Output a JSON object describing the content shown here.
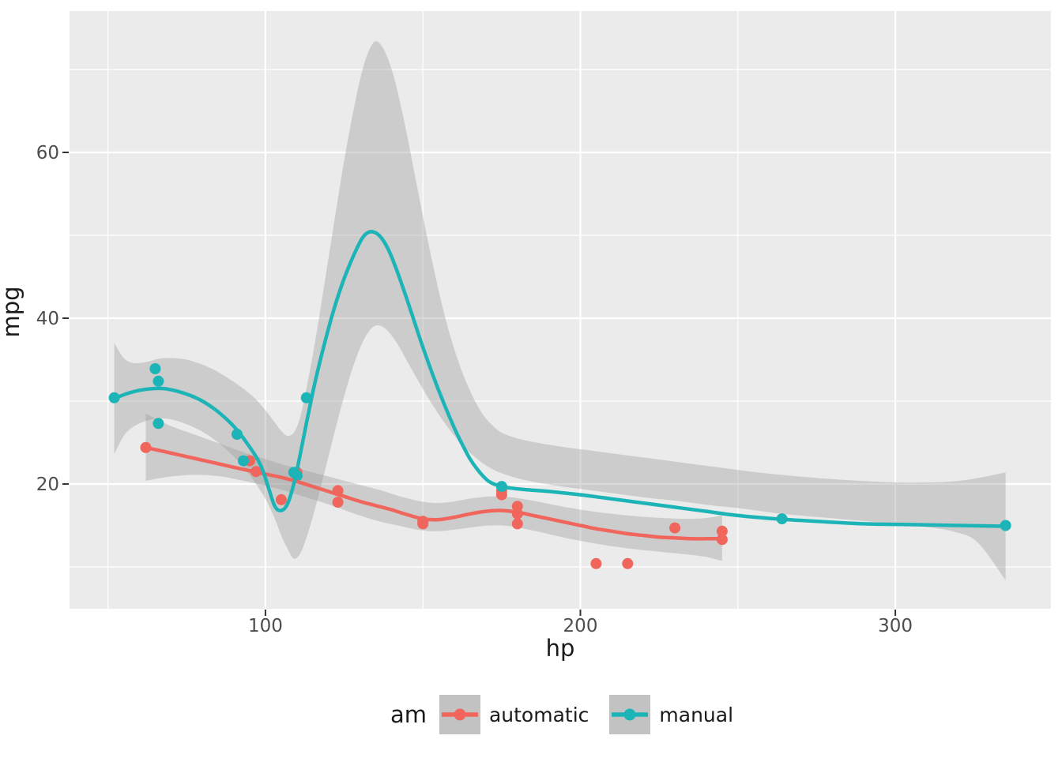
{
  "figure": {
    "background": "#ffffff",
    "panel_background": "#ebebeb",
    "grid_color": "#ffffff",
    "tick_label_color": "#4d4d4d",
    "axis_title_color": "#1a1a1a",
    "band_color": "#9a9a9a",
    "band_opacity": 0.38,
    "legend_key_background": "#c2c2c2"
  },
  "chart_data": {
    "type": "scatter",
    "title": "",
    "xlabel": "hp",
    "ylabel": "mpg",
    "xlim": [
      37.8,
      349.4
    ],
    "ylim": [
      4.95,
      77.05
    ],
    "x_ticks": [
      100,
      200,
      300
    ],
    "y_ticks": [
      20,
      40,
      60
    ],
    "x_minor": [
      50,
      150,
      250
    ],
    "y_minor": [
      10,
      30,
      50,
      70
    ],
    "grid": true,
    "legend": {
      "title": "am",
      "position": "bottom"
    },
    "series": [
      {
        "name": "automatic",
        "color": "#F0655C",
        "points": [
          [
            110,
            21.4
          ],
          [
            175,
            18.7
          ],
          [
            105,
            18.1
          ],
          [
            245,
            14.3
          ],
          [
            62,
            24.4
          ],
          [
            95,
            22.8
          ],
          [
            123,
            19.2
          ],
          [
            123,
            17.8
          ],
          [
            180,
            16.4
          ],
          [
            180,
            17.3
          ],
          [
            180,
            15.2
          ],
          [
            205,
            10.4
          ],
          [
            215,
            10.4
          ],
          [
            230,
            14.7
          ],
          [
            97,
            21.5
          ],
          [
            150,
            15.5
          ],
          [
            150,
            15.2
          ],
          [
            245,
            13.3
          ],
          [
            175,
            19.2
          ]
        ],
        "smooth": [
          [
            62,
            24.4
          ],
          [
            68,
            23.9
          ],
          [
            75,
            23.3
          ],
          [
            82,
            22.7
          ],
          [
            89,
            22.1
          ],
          [
            95,
            21.6
          ],
          [
            100,
            21.2
          ],
          [
            105,
            20.8
          ],
          [
            110,
            20.3
          ],
          [
            115,
            19.7
          ],
          [
            120,
            19.1
          ],
          [
            125,
            18.5
          ],
          [
            130,
            17.9
          ],
          [
            135,
            17.4
          ],
          [
            140,
            16.9
          ],
          [
            145,
            16.3
          ],
          [
            150,
            15.8
          ],
          [
            155,
            15.7
          ],
          [
            160,
            16.0
          ],
          [
            165,
            16.4
          ],
          [
            170,
            16.7
          ],
          [
            175,
            16.8
          ],
          [
            180,
            16.6
          ],
          [
            185,
            16.2
          ],
          [
            190,
            15.8
          ],
          [
            195,
            15.4
          ],
          [
            200,
            15.0
          ],
          [
            205,
            14.6
          ],
          [
            210,
            14.3
          ],
          [
            215,
            14.0
          ],
          [
            220,
            13.8
          ],
          [
            225,
            13.6
          ],
          [
            230,
            13.5
          ],
          [
            235,
            13.4
          ],
          [
            240,
            13.4
          ],
          [
            245,
            13.4
          ]
        ],
        "band": [
          [
            62,
            20.4,
            28.5
          ],
          [
            70,
            20.9,
            27.0
          ],
          [
            78,
            21.1,
            25.9
          ],
          [
            86,
            20.9,
            24.8
          ],
          [
            94,
            20.3,
            23.7
          ],
          [
            100,
            19.8,
            23.0
          ],
          [
            106,
            19.2,
            22.3
          ],
          [
            112,
            18.5,
            21.7
          ],
          [
            118,
            17.8,
            21.1
          ],
          [
            124,
            17.0,
            20.5
          ],
          [
            130,
            16.2,
            19.9
          ],
          [
            136,
            15.5,
            19.3
          ],
          [
            142,
            15.0,
            18.6
          ],
          [
            148,
            14.5,
            18.0
          ],
          [
            154,
            14.3,
            17.7
          ],
          [
            160,
            14.5,
            17.9
          ],
          [
            166,
            14.8,
            18.3
          ],
          [
            172,
            15.0,
            18.5
          ],
          [
            178,
            14.9,
            18.4
          ],
          [
            186,
            14.3,
            17.9
          ],
          [
            194,
            13.6,
            17.3
          ],
          [
            202,
            13.0,
            16.8
          ],
          [
            210,
            12.5,
            16.4
          ],
          [
            218,
            12.1,
            16.1
          ],
          [
            226,
            11.8,
            15.9
          ],
          [
            234,
            11.5,
            15.8
          ],
          [
            240,
            11.2,
            15.9
          ],
          [
            245,
            10.7,
            16.2
          ]
        ]
      },
      {
        "name": "manual",
        "color": "#1CB4B7",
        "points": [
          [
            110,
            21.0
          ],
          [
            110,
            21.0
          ],
          [
            93,
            22.8
          ],
          [
            66,
            32.4
          ],
          [
            52,
            30.4
          ],
          [
            65,
            33.9
          ],
          [
            66,
            27.3
          ],
          [
            91,
            26.0
          ],
          [
            113,
            30.4
          ],
          [
            264,
            15.8
          ],
          [
            175,
            19.7
          ],
          [
            335,
            15.0
          ],
          [
            109,
            21.4
          ]
        ],
        "smooth": [
          [
            52,
            30.3
          ],
          [
            56,
            30.9
          ],
          [
            60,
            31.3
          ],
          [
            64,
            31.5
          ],
          [
            68,
            31.5
          ],
          [
            72,
            31.2
          ],
          [
            76,
            30.7
          ],
          [
            80,
            30.0
          ],
          [
            84,
            29.0
          ],
          [
            88,
            27.7
          ],
          [
            91,
            26.5
          ],
          [
            94,
            25.0
          ],
          [
            97,
            23.3
          ],
          [
            99,
            21.8
          ],
          [
            101,
            19.5
          ],
          [
            103,
            17.3
          ],
          [
            105,
            16.8
          ],
          [
            107,
            17.6
          ],
          [
            109,
            20.0
          ],
          [
            111,
            23.5
          ],
          [
            113,
            27.3
          ],
          [
            115,
            31.0
          ],
          [
            117,
            34.3
          ],
          [
            119,
            37.3
          ],
          [
            121,
            40.1
          ],
          [
            123,
            42.6
          ],
          [
            125,
            44.8
          ],
          [
            127,
            46.7
          ],
          [
            129,
            48.4
          ],
          [
            131,
            49.8
          ],
          [
            133,
            50.4
          ],
          [
            135,
            50.3
          ],
          [
            137,
            49.6
          ],
          [
            139,
            48.3
          ],
          [
            141,
            46.5
          ],
          [
            143,
            44.4
          ],
          [
            145,
            42.2
          ],
          [
            147,
            39.9
          ],
          [
            149,
            37.6
          ],
          [
            151,
            35.4
          ],
          [
            153,
            33.3
          ],
          [
            155,
            31.3
          ],
          [
            157,
            29.4
          ],
          [
            159,
            27.6
          ],
          [
            161,
            25.9
          ],
          [
            163,
            24.4
          ],
          [
            165,
            23.0
          ],
          [
            167,
            21.9
          ],
          [
            169,
            21.0
          ],
          [
            171,
            20.3
          ],
          [
            174,
            19.8
          ],
          [
            178,
            19.5
          ],
          [
            183,
            19.3
          ],
          [
            190,
            19.1
          ],
          [
            200,
            18.7
          ],
          [
            210,
            18.2
          ],
          [
            220,
            17.7
          ],
          [
            230,
            17.2
          ],
          [
            240,
            16.7
          ],
          [
            250,
            16.2
          ],
          [
            262,
            15.8
          ],
          [
            275,
            15.5
          ],
          [
            290,
            15.2
          ],
          [
            305,
            15.1
          ],
          [
            320,
            15.0
          ],
          [
            335,
            14.9
          ]
        ],
        "band": [
          [
            52,
            23.6,
            37.0
          ],
          [
            55,
            25.8,
            35.2
          ],
          [
            58,
            26.9,
            34.6
          ],
          [
            62,
            27.6,
            34.7
          ],
          [
            66,
            27.9,
            35.1
          ],
          [
            70,
            27.8,
            35.2
          ],
          [
            75,
            27.2,
            35.0
          ],
          [
            80,
            26.3,
            34.4
          ],
          [
            85,
            25.0,
            33.5
          ],
          [
            90,
            23.3,
            32.3
          ],
          [
            94,
            21.6,
            31.2
          ],
          [
            97,
            20.0,
            30.2
          ],
          [
            100,
            18.2,
            28.9
          ],
          [
            103,
            15.8,
            27.4
          ],
          [
            105,
            13.8,
            26.4
          ],
          [
            107,
            12.2,
            25.8
          ],
          [
            109,
            11.0,
            26.2
          ],
          [
            111,
            11.6,
            28.0
          ],
          [
            113,
            13.5,
            31.5
          ],
          [
            115,
            16.0,
            35.5
          ],
          [
            117,
            18.8,
            40.0
          ],
          [
            119,
            21.8,
            44.8
          ],
          [
            121,
            24.8,
            49.6
          ],
          [
            123,
            27.8,
            54.4
          ],
          [
            125,
            30.6,
            59.0
          ],
          [
            127,
            33.2,
            63.2
          ],
          [
            129,
            35.4,
            67.0
          ],
          [
            131,
            37.2,
            70.2
          ],
          [
            133,
            38.5,
            72.4
          ],
          [
            135,
            39.1,
            73.4
          ],
          [
            137,
            39.0,
            72.8
          ],
          [
            139,
            38.4,
            71.2
          ],
          [
            141,
            37.4,
            68.8
          ],
          [
            143,
            36.2,
            65.6
          ],
          [
            145,
            34.8,
            62.0
          ],
          [
            148,
            32.8,
            56.2
          ],
          [
            151,
            30.8,
            50.4
          ],
          [
            154,
            29.0,
            45.0
          ],
          [
            157,
            27.3,
            40.2
          ],
          [
            160,
            25.8,
            36.2
          ],
          [
            163,
            24.5,
            33.0
          ],
          [
            166,
            23.4,
            30.4
          ],
          [
            169,
            22.5,
            28.4
          ],
          [
            172,
            21.8,
            27.1
          ],
          [
            175,
            21.3,
            26.2
          ],
          [
            180,
            20.7,
            25.5
          ],
          [
            186,
            20.2,
            25.0
          ],
          [
            194,
            19.7,
            24.5
          ],
          [
            202,
            19.3,
            24.1
          ],
          [
            212,
            18.8,
            23.6
          ],
          [
            222,
            18.3,
            23.1
          ],
          [
            232,
            17.9,
            22.6
          ],
          [
            242,
            17.4,
            22.1
          ],
          [
            252,
            17.0,
            21.6
          ],
          [
            264,
            16.4,
            21.1
          ],
          [
            276,
            16.0,
            20.7
          ],
          [
            288,
            15.6,
            20.4
          ],
          [
            300,
            15.2,
            20.2
          ],
          [
            310,
            14.8,
            20.2
          ],
          [
            318,
            14.3,
            20.3
          ],
          [
            326,
            13.0,
            20.7
          ],
          [
            335,
            8.4,
            21.4
          ]
        ]
      }
    ]
  }
}
